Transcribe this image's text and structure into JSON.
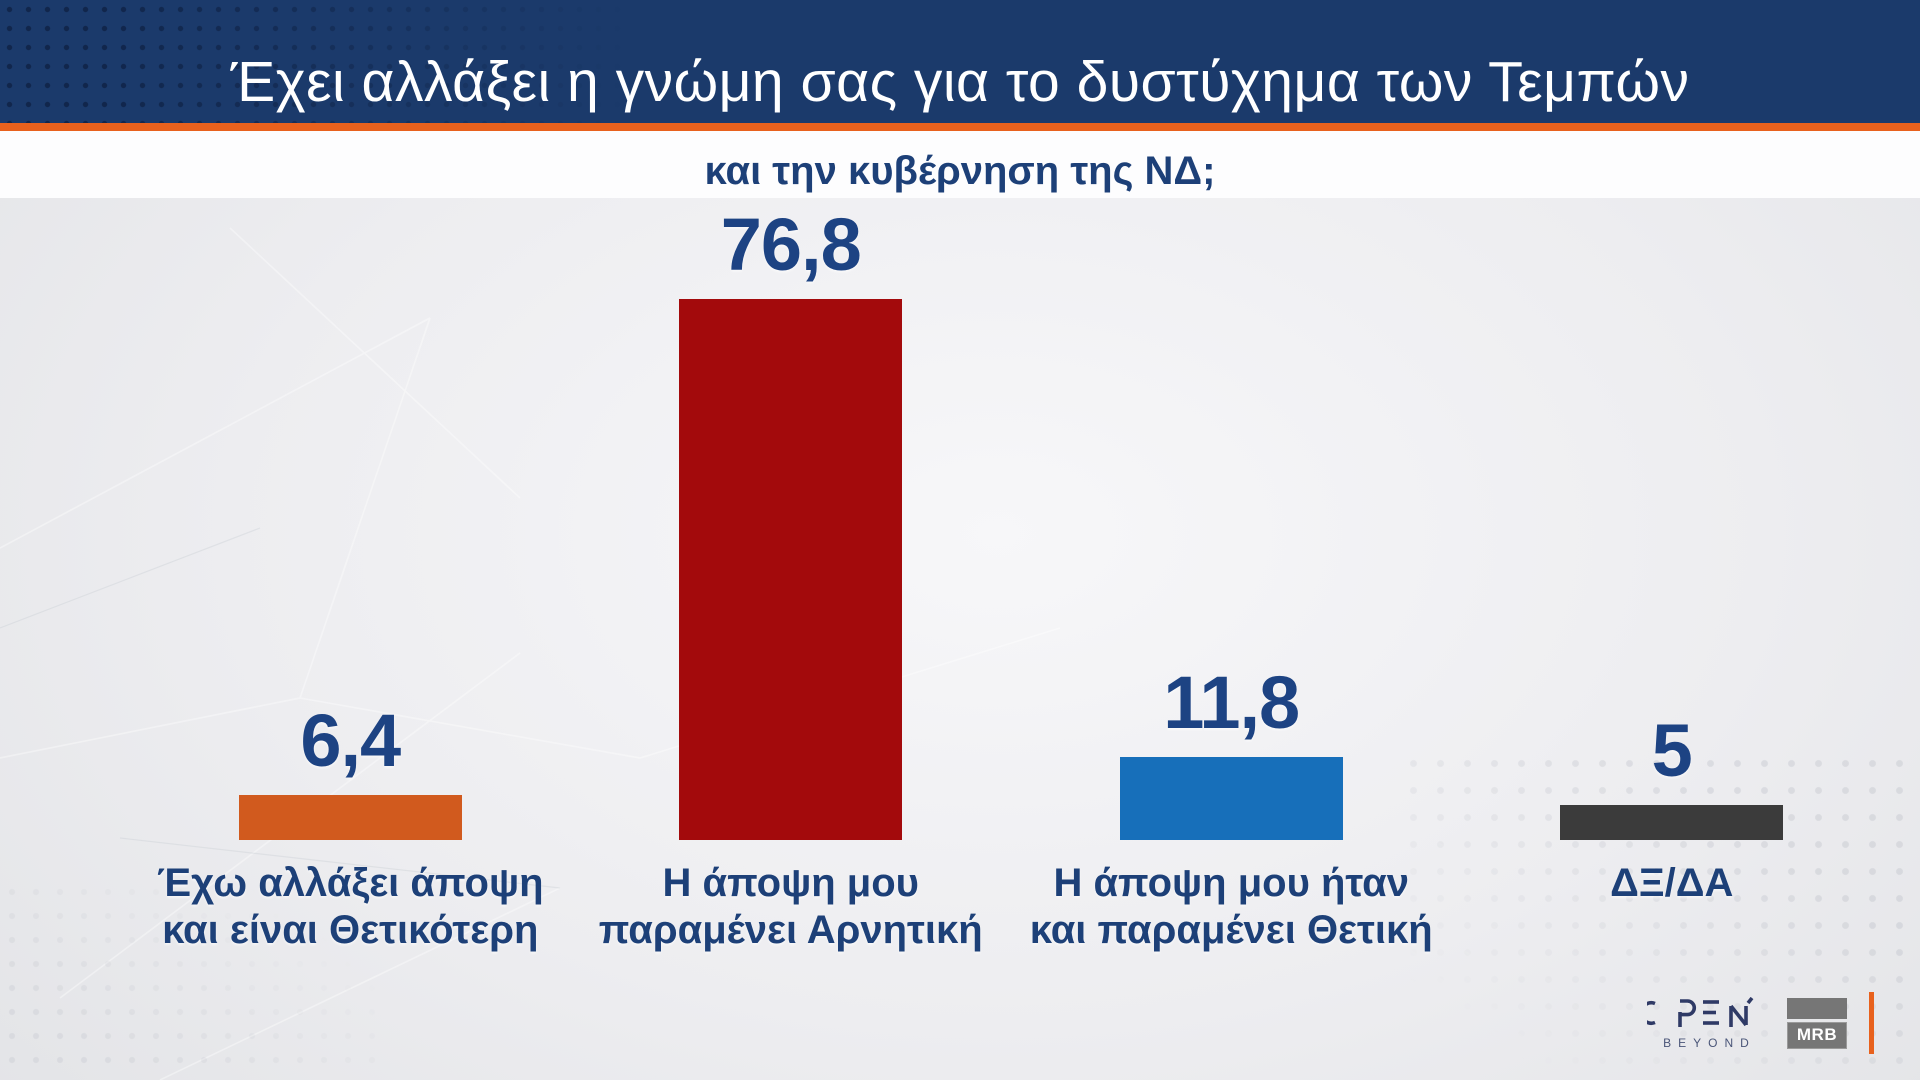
{
  "header": {
    "title": "Έχει αλλάξει η γνώμη σας για το δυστύχημα των Τεμπών",
    "subtitle": "και την κυβέρνηση της ΝΔ;",
    "bg_color": "#1b3a6b",
    "accent_color": "#e8611d",
    "title_color": "#ffffff",
    "subtitle_color": "#1d4078"
  },
  "chart_data": {
    "type": "bar",
    "title": "Έχει αλλάξει η γνώμη σας για το δυστύχημα των Τεμπών και την κυβέρνηση της ΝΔ;",
    "categories": [
      "Έχω αλλάξει άποψη\nκαι είναι Θετικότερη",
      "Η άποψη μου\nπαραμένει Αρνητική",
      "Η άποψη μου ήταν\nκαι παραμένει Θετική",
      "ΔΞ/ΔΑ"
    ],
    "values": [
      6.4,
      76.8,
      11.8,
      5
    ],
    "value_labels": [
      "6,4",
      "76,8",
      "11,8",
      "5"
    ],
    "bar_colors": [
      "#d15a1e",
      "#a30a0c",
      "#176fba",
      "#3b3b3b"
    ],
    "value_color": "#1d4383",
    "label_color": "#1d4078",
    "ylim": [
      0,
      100
    ],
    "grid": false,
    "legend": false,
    "orientation": "vertical"
  },
  "footer": {
    "open_logo": {
      "name": "OPEN",
      "subtext": "BEYOND"
    },
    "mrb_logo": {
      "text": "MRB"
    }
  }
}
